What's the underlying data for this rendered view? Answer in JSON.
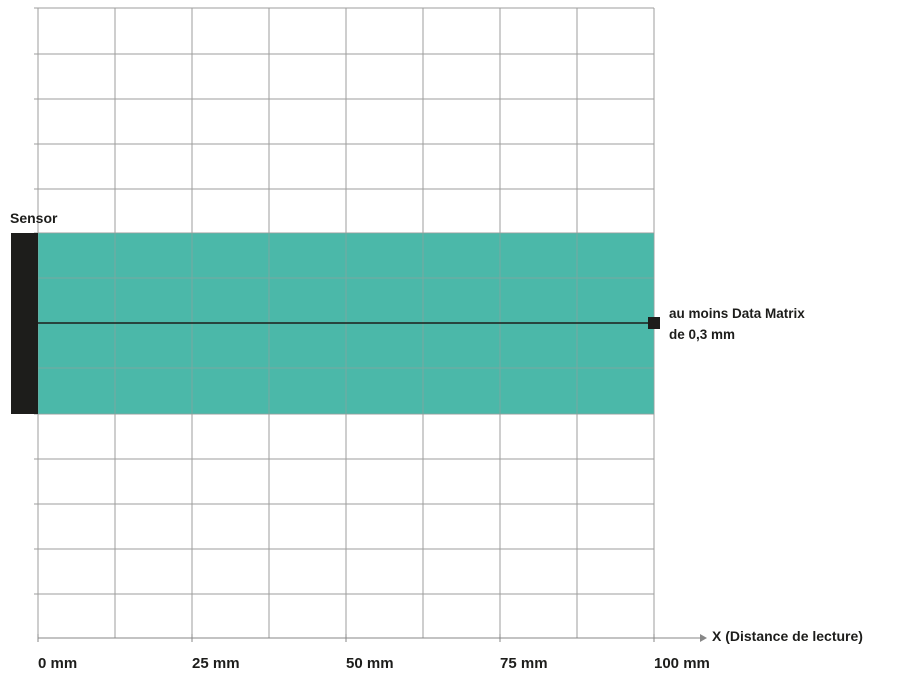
{
  "diagram": {
    "sensor_label": "Sensor",
    "target_label_line1": "au moins Data Matrix",
    "target_label_line2": "de 0,3 mm",
    "x_axis_label": "X (Distance de lecture)",
    "ticks": [
      {
        "value": 0,
        "label": "0 mm"
      },
      {
        "value": 25,
        "label": "25 mm"
      },
      {
        "value": 50,
        "label": "50 mm"
      },
      {
        "value": 75,
        "label": "75 mm"
      },
      {
        "value": 100,
        "label": "100 mm"
      }
    ],
    "reading_range_max_mm": 100,
    "colors": {
      "field": "#4bb8a9",
      "sensor": "#1d1d1b",
      "grid": "#9d9d9c",
      "axis": "#878787"
    }
  }
}
